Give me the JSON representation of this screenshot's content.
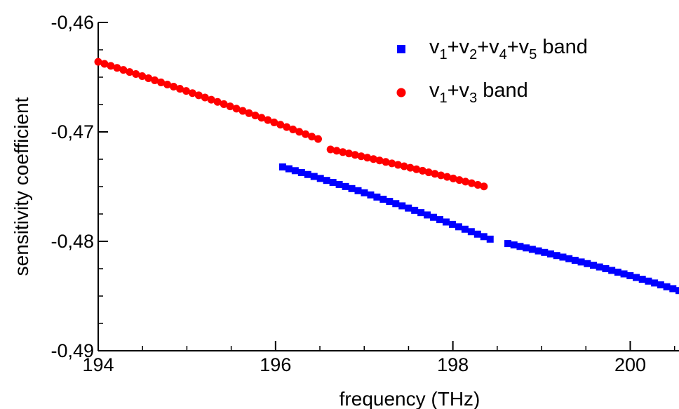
{
  "chart_data": {
    "type": "scatter",
    "xlabel": "frequency (THz)",
    "ylabel": "sensitivity coefficient",
    "xlim": [
      194,
      200.55
    ],
    "ylim": [
      -0.49,
      -0.46
    ],
    "x_ticks": [
      194,
      196,
      198,
      200
    ],
    "x_tick_labels": [
      "194",
      "196",
      "198",
      "200"
    ],
    "y_ticks": [
      -0.46,
      -0.47,
      -0.48,
      -0.49
    ],
    "y_tick_labels": [
      "-0,46",
      "-0,47",
      "-0,48",
      "-0,49"
    ],
    "grid": false,
    "legend_position": "top-right",
    "series": [
      {
        "name": "v1+v2+v4+v5 band",
        "legend": [
          {
            "text": "v",
            "sub": false
          },
          {
            "text": "1",
            "sub": true
          },
          {
            "text": "+v",
            "sub": false
          },
          {
            "text": "2",
            "sub": true
          },
          {
            "text": "+v",
            "sub": false
          },
          {
            "text": "4",
            "sub": true
          },
          {
            "text": "+v",
            "sub": false
          },
          {
            "text": "5",
            "sub": true
          },
          {
            "text": " band",
            "sub": false
          }
        ],
        "marker": "square",
        "color": "#0000ff",
        "segments": [
          {
            "x": [
              196.08,
              198.42
            ],
            "y": [
              -0.4732,
              -0.4798
            ]
          },
          {
            "x": [
              198.62,
              200.55
            ],
            "y": [
              -0.4802,
              -0.4845
            ]
          }
        ],
        "point_step": 0.07
      },
      {
        "name": "v1+v3 band",
        "legend": [
          {
            "text": "v",
            "sub": false
          },
          {
            "text": "1",
            "sub": true
          },
          {
            "text": "+v",
            "sub": false
          },
          {
            "text": "3",
            "sub": true
          },
          {
            "text": " band",
            "sub": false
          }
        ],
        "marker": "circle",
        "color": "#ff0000",
        "segments": [
          {
            "x": [
              194.0,
              196.48
            ],
            "y": [
              -0.4636,
              -0.4711
            ]
          },
          {
            "x": [
              196.62,
              198.35
            ],
            "y": [
              -0.4716,
              -0.4752
            ]
          }
        ],
        "point_step": 0.07
      }
    ]
  }
}
